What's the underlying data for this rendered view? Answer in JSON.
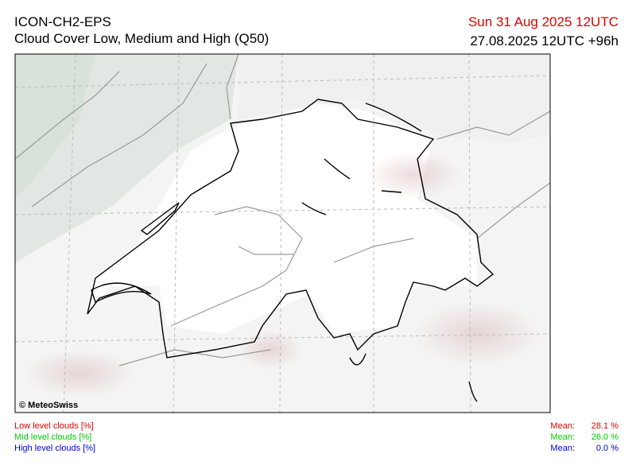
{
  "header": {
    "title": "ICON-CH2-EPS",
    "subtitle": "Cloud Cover Low, Medium and High (Q50)",
    "valid_time": "Sun 31 Aug 2025 12UTC",
    "run": "27.08.2025 12UTC +96h"
  },
  "map": {
    "copyright": "© MeteoSwiss"
  },
  "legend": [
    {
      "label": "Low level clouds [%]",
      "mean_label": "Mean:",
      "mean": "28.1 %",
      "color": "#e00000"
    },
    {
      "label": "Mid level clouds [%]",
      "mean_label": "Mean:",
      "mean": "26.0 %",
      "color": "#00cc00"
    },
    {
      "label": "High level clouds [%]",
      "mean_label": "Mean:",
      "mean": "0.0 %",
      "color": "#0000dd"
    }
  ]
}
